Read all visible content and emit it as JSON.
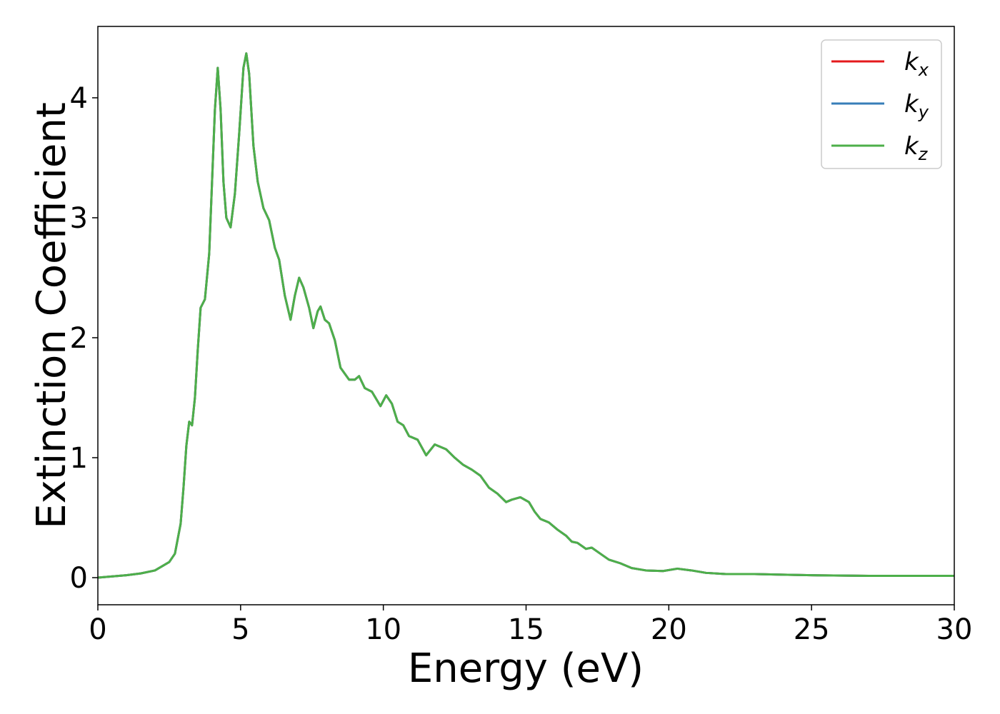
{
  "chart_data": {
    "type": "line",
    "xlabel": "Energy (eV)",
    "ylabel": "Extinction Coefficient",
    "x": [
      0,
      1,
      1.5,
      2,
      2.5,
      2.7,
      2.9,
      3.0,
      3.1,
      3.2,
      3.3,
      3.4,
      3.5,
      3.6,
      3.75,
      3.9,
      4.0,
      4.1,
      4.2,
      4.3,
      4.4,
      4.5,
      4.65,
      4.8,
      4.95,
      5.1,
      5.2,
      5.3,
      5.45,
      5.6,
      5.8,
      6.0,
      6.2,
      6.35,
      6.55,
      6.75,
      6.9,
      7.05,
      7.2,
      7.4,
      7.55,
      7.7,
      7.8,
      7.95,
      8.1,
      8.3,
      8.5,
      8.8,
      9.0,
      9.15,
      9.35,
      9.6,
      9.9,
      10.1,
      10.3,
      10.5,
      10.7,
      10.9,
      11.2,
      11.5,
      11.8,
      12.2,
      12.5,
      12.8,
      13.1,
      13.4,
      13.7,
      14.0,
      14.3,
      14.5,
      14.8,
      15.1,
      15.3,
      15.5,
      15.8,
      16.1,
      16.4,
      16.6,
      16.8,
      17.1,
      17.3,
      17.6,
      17.9,
      18.3,
      18.7,
      19.2,
      19.8,
      20.3,
      20.8,
      21.3,
      22,
      23,
      24,
      25,
      27,
      30
    ],
    "series": [
      {
        "name": "kx",
        "color": "#e41a1c",
        "values": [
          0,
          0.02,
          0.035,
          0.06,
          0.13,
          0.2,
          0.45,
          0.75,
          1.1,
          1.3,
          1.27,
          1.5,
          1.9,
          2.25,
          2.32,
          2.7,
          3.3,
          3.9,
          4.25,
          3.9,
          3.3,
          3.0,
          2.92,
          3.2,
          3.7,
          4.25,
          4.37,
          4.2,
          3.6,
          3.3,
          3.08,
          2.98,
          2.75,
          2.65,
          2.35,
          2.15,
          2.35,
          2.5,
          2.42,
          2.25,
          2.08,
          2.22,
          2.26,
          2.15,
          2.12,
          1.98,
          1.75,
          1.65,
          1.65,
          1.68,
          1.58,
          1.55,
          1.43,
          1.52,
          1.45,
          1.3,
          1.27,
          1.18,
          1.15,
          1.02,
          1.11,
          1.07,
          1.0,
          0.94,
          0.9,
          0.85,
          0.75,
          0.7,
          0.63,
          0.65,
          0.67,
          0.63,
          0.55,
          0.49,
          0.46,
          0.4,
          0.35,
          0.3,
          0.29,
          0.24,
          0.25,
          0.2,
          0.15,
          0.12,
          0.08,
          0.06,
          0.055,
          0.075,
          0.06,
          0.04,
          0.03,
          0.03,
          0.025,
          0.02,
          0.015,
          0.015
        ]
      },
      {
        "name": "ky",
        "color": "#377eb8",
        "values": [
          0,
          0.02,
          0.035,
          0.06,
          0.13,
          0.2,
          0.45,
          0.75,
          1.1,
          1.3,
          1.27,
          1.5,
          1.9,
          2.25,
          2.32,
          2.7,
          3.3,
          3.9,
          4.25,
          3.9,
          3.3,
          3.0,
          2.92,
          3.2,
          3.7,
          4.25,
          4.37,
          4.2,
          3.6,
          3.3,
          3.08,
          2.98,
          2.75,
          2.65,
          2.35,
          2.15,
          2.35,
          2.5,
          2.42,
          2.25,
          2.08,
          2.22,
          2.26,
          2.15,
          2.12,
          1.98,
          1.75,
          1.65,
          1.65,
          1.68,
          1.58,
          1.55,
          1.43,
          1.52,
          1.45,
          1.3,
          1.27,
          1.18,
          1.15,
          1.02,
          1.11,
          1.07,
          1.0,
          0.94,
          0.9,
          0.85,
          0.75,
          0.7,
          0.63,
          0.65,
          0.67,
          0.63,
          0.55,
          0.49,
          0.46,
          0.4,
          0.35,
          0.3,
          0.29,
          0.24,
          0.25,
          0.2,
          0.15,
          0.12,
          0.08,
          0.06,
          0.055,
          0.075,
          0.06,
          0.04,
          0.03,
          0.03,
          0.025,
          0.02,
          0.015,
          0.015
        ]
      },
      {
        "name": "kz",
        "color": "#4daf4a",
        "values": [
          0,
          0.02,
          0.035,
          0.06,
          0.13,
          0.2,
          0.45,
          0.75,
          1.1,
          1.3,
          1.27,
          1.5,
          1.9,
          2.25,
          2.32,
          2.7,
          3.3,
          3.9,
          4.25,
          3.9,
          3.3,
          3.0,
          2.92,
          3.2,
          3.7,
          4.25,
          4.37,
          4.2,
          3.6,
          3.3,
          3.08,
          2.98,
          2.75,
          2.65,
          2.35,
          2.15,
          2.35,
          2.5,
          2.42,
          2.25,
          2.08,
          2.22,
          2.26,
          2.15,
          2.12,
          1.98,
          1.75,
          1.65,
          1.65,
          1.68,
          1.58,
          1.55,
          1.43,
          1.52,
          1.45,
          1.3,
          1.27,
          1.18,
          1.15,
          1.02,
          1.11,
          1.07,
          1.0,
          0.94,
          0.9,
          0.85,
          0.75,
          0.7,
          0.63,
          0.65,
          0.67,
          0.63,
          0.55,
          0.49,
          0.46,
          0.4,
          0.35,
          0.3,
          0.29,
          0.24,
          0.25,
          0.2,
          0.15,
          0.12,
          0.08,
          0.06,
          0.055,
          0.075,
          0.06,
          0.04,
          0.03,
          0.03,
          0.025,
          0.02,
          0.015,
          0.015
        ]
      }
    ],
    "xlim": [
      0,
      30
    ],
    "xticks": [
      0,
      5,
      10,
      15,
      20,
      25,
      30
    ],
    "ylim": [
      -0.226,
      4.595
    ],
    "yticks": [
      0,
      1,
      2,
      3,
      4
    ],
    "grid": false,
    "legend": "upper right"
  }
}
